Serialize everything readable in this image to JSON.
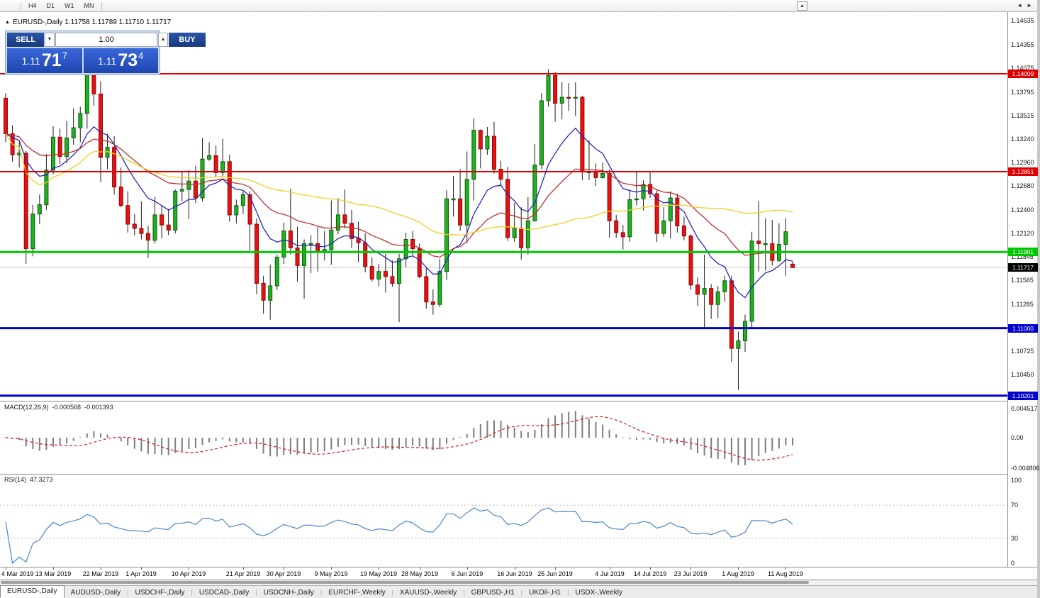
{
  "toolbar": {
    "timeframes": [
      "H4",
      "D1",
      "W1",
      "MN"
    ],
    "up_arrow": "▲"
  },
  "chart": {
    "collapse_icon": "▲",
    "symbol": "EURUSD-,Daily",
    "ohlc_text": "1.11758 1.11789 1.11710 1.11717"
  },
  "trade_panel": {
    "sell_label": "SELL",
    "buy_label": "BUY",
    "volume": "1.00",
    "spinner_up": "▲",
    "spinner_down": "▼",
    "sell_price_prefix": "1.11",
    "sell_price_big": "71",
    "sell_price_sup": "7",
    "buy_price_prefix": "1.11",
    "buy_price_big": "73",
    "buy_price_sup": "4"
  },
  "tabs": {
    "items": [
      "EURUSD-,Daily",
      "AUDUSD-,Daily",
      "USDCHF-,Daily",
      "USDCAD-,Daily",
      "USDCNH-,Daily",
      "EURCHF-,Weekly",
      "XAUUSD-,Weekly",
      "GBPUSD-,H1",
      "UKOil-,H1",
      "USDX-,Weekly"
    ],
    "active_index": 0,
    "nav_left": "◄",
    "nav_right": "►"
  },
  "chart_data": {
    "type": "candlestick",
    "title": "EURUSD-,Daily",
    "ohlc": [
      [
        1.1372,
        1.1378,
        1.132,
        1.133
      ],
      [
        1.133,
        1.134,
        1.1297,
        1.1305
      ],
      [
        1.1305,
        1.132,
        1.129,
        1.1307
      ],
      [
        1.1307,
        1.131,
        1.1176,
        1.1194
      ],
      [
        1.1194,
        1.1246,
        1.1185,
        1.1235
      ],
      [
        1.1235,
        1.1258,
        1.1223,
        1.1246
      ],
      [
        1.1246,
        1.1306,
        1.124,
        1.1287
      ],
      [
        1.1287,
        1.1339,
        1.1282,
        1.1326
      ],
      [
        1.1326,
        1.1336,
        1.1294,
        1.1303
      ],
      [
        1.1303,
        1.1345,
        1.1295,
        1.1325
      ],
      [
        1.1325,
        1.136,
        1.1317,
        1.1337
      ],
      [
        1.1337,
        1.1362,
        1.132,
        1.1354
      ],
      [
        1.1354,
        1.141,
        1.1336,
        1.14
      ],
      [
        1.14,
        1.1412,
        1.1363,
        1.1377
      ],
      [
        1.1377,
        1.1392,
        1.1273,
        1.1302
      ],
      [
        1.1302,
        1.133,
        1.1288,
        1.1314
      ],
      [
        1.1314,
        1.1327,
        1.1258,
        1.1267
      ],
      [
        1.1267,
        1.129,
        1.1243,
        1.1245
      ],
      [
        1.1245,
        1.1262,
        1.1213,
        1.1223
      ],
      [
        1.1223,
        1.1235,
        1.121,
        1.1218
      ],
      [
        1.1218,
        1.125,
        1.1205,
        1.1212
      ],
      [
        1.1212,
        1.1221,
        1.1183,
        1.1204
      ],
      [
        1.1204,
        1.1255,
        1.12,
        1.1234
      ],
      [
        1.1234,
        1.1245,
        1.1206,
        1.1222
      ],
      [
        1.1222,
        1.1241,
        1.121,
        1.1216
      ],
      [
        1.1216,
        1.1264,
        1.1212,
        1.1262
      ],
      [
        1.1262,
        1.1285,
        1.125,
        1.1264
      ],
      [
        1.1264,
        1.1287,
        1.1229,
        1.1274
      ],
      [
        1.1274,
        1.1292,
        1.1248,
        1.1254
      ],
      [
        1.1254,
        1.1325,
        1.125,
        1.13
      ],
      [
        1.13,
        1.132,
        1.1298,
        1.1304
      ],
      [
        1.1304,
        1.1316,
        1.1279,
        1.1284
      ],
      [
        1.1284,
        1.1324,
        1.128,
        1.1297
      ],
      [
        1.1297,
        1.1305,
        1.1226,
        1.1234
      ],
      [
        1.1234,
        1.1252,
        1.1224,
        1.1245
      ],
      [
        1.1245,
        1.1262,
        1.1235,
        1.1258
      ],
      [
        1.1258,
        1.1262,
        1.1192,
        1.1223
      ],
      [
        1.1223,
        1.123,
        1.114,
        1.1153
      ],
      [
        1.1153,
        1.1162,
        1.1117,
        1.1133
      ],
      [
        1.1133,
        1.1175,
        1.111,
        1.115
      ],
      [
        1.115,
        1.1187,
        1.1145,
        1.1184
      ],
      [
        1.1184,
        1.1225,
        1.1176,
        1.1215
      ],
      [
        1.1215,
        1.1265,
        1.1187,
        1.1195
      ],
      [
        1.1195,
        1.122,
        1.1155,
        1.1174
      ],
      [
        1.1174,
        1.1205,
        1.1135,
        1.12
      ],
      [
        1.12,
        1.121,
        1.1165,
        1.12
      ],
      [
        1.12,
        1.122,
        1.1167,
        1.1191
      ],
      [
        1.1191,
        1.1215,
        1.118,
        1.1193
      ],
      [
        1.1193,
        1.1251,
        1.1175,
        1.1216
      ],
      [
        1.1216,
        1.1254,
        1.1211,
        1.1234
      ],
      [
        1.1234,
        1.1264,
        1.1218,
        1.1224
      ],
      [
        1.1224,
        1.124,
        1.1195,
        1.1206
      ],
      [
        1.1206,
        1.1226,
        1.1178,
        1.1201
      ],
      [
        1.1201,
        1.1212,
        1.1166,
        1.1173
      ],
      [
        1.1173,
        1.1184,
        1.1155,
        1.1158
      ],
      [
        1.1158,
        1.1176,
        1.115,
        1.1167
      ],
      [
        1.1167,
        1.1188,
        1.1142,
        1.1161
      ],
      [
        1.1161,
        1.118,
        1.1149,
        1.1153
      ],
      [
        1.1153,
        1.1188,
        1.1107,
        1.1182
      ],
      [
        1.1182,
        1.1213,
        1.1172,
        1.1205
      ],
      [
        1.1205,
        1.1215,
        1.1186,
        1.1194
      ],
      [
        1.1194,
        1.12,
        1.1159,
        1.1161
      ],
      [
        1.1161,
        1.1172,
        1.1123,
        1.1131
      ],
      [
        1.1131,
        1.1146,
        1.1116,
        1.1128
      ],
      [
        1.1128,
        1.1182,
        1.1125,
        1.1167
      ],
      [
        1.1167,
        1.1263,
        1.1157,
        1.1253
      ],
      [
        1.1253,
        1.128,
        1.1232,
        1.1253
      ],
      [
        1.1253,
        1.1288,
        1.1215,
        1.1222
      ],
      [
        1.1222,
        1.1309,
        1.1201,
        1.1276
      ],
      [
        1.1276,
        1.1348,
        1.1251,
        1.1334
      ],
      [
        1.1334,
        1.1335,
        1.1289,
        1.1312
      ],
      [
        1.1312,
        1.1338,
        1.1305,
        1.1327
      ],
      [
        1.1327,
        1.1344,
        1.1283,
        1.1288
      ],
      [
        1.1288,
        1.1298,
        1.1268,
        1.1276
      ],
      [
        1.1276,
        1.1291,
        1.1203,
        1.1207
      ],
      [
        1.1207,
        1.1248,
        1.1202,
        1.1218
      ],
      [
        1.1218,
        1.1243,
        1.1181,
        1.1195
      ],
      [
        1.1195,
        1.1255,
        1.1187,
        1.1227
      ],
      [
        1.1227,
        1.1318,
        1.1226,
        1.1293
      ],
      [
        1.1293,
        1.1378,
        1.1288,
        1.1369
      ],
      [
        1.1369,
        1.1406,
        1.1362,
        1.1399
      ],
      [
        1.1399,
        1.1403,
        1.1344,
        1.1366
      ],
      [
        1.1366,
        1.1391,
        1.1347,
        1.1373
      ],
      [
        1.1373,
        1.139,
        1.1357,
        1.1372
      ],
      [
        1.1372,
        1.1391,
        1.1351,
        1.1373
      ],
      [
        1.1373,
        1.1375,
        1.1275,
        1.1285
      ],
      [
        1.1285,
        1.1322,
        1.1275,
        1.1285
      ],
      [
        1.1285,
        1.1295,
        1.1268,
        1.1278
      ],
      [
        1.1278,
        1.1296,
        1.1277,
        1.1283
      ],
      [
        1.1283,
        1.1288,
        1.1207,
        1.1227
      ],
      [
        1.1227,
        1.1234,
        1.1207,
        1.1213
      ],
      [
        1.1213,
        1.1222,
        1.1193,
        1.1208
      ],
      [
        1.1208,
        1.1264,
        1.1202,
        1.1252
      ],
      [
        1.1252,
        1.1286,
        1.1245,
        1.1253
      ],
      [
        1.1253,
        1.1275,
        1.1239,
        1.127
      ],
      [
        1.127,
        1.1284,
        1.1254,
        1.1259
      ],
      [
        1.1259,
        1.1263,
        1.1202,
        1.1212
      ],
      [
        1.1212,
        1.1243,
        1.1208,
        1.1227
      ],
      [
        1.1227,
        1.1262,
        1.1206,
        1.1254
      ],
      [
        1.1254,
        1.1259,
        1.1213,
        1.1221
      ],
      [
        1.1221,
        1.1232,
        1.1204,
        1.1209
      ],
      [
        1.1209,
        1.1211,
        1.1145,
        1.1151
      ],
      [
        1.1151,
        1.116,
        1.1126,
        1.114
      ],
      [
        1.114,
        1.1187,
        1.1101,
        1.1147
      ],
      [
        1.1147,
        1.1152,
        1.1111,
        1.1128
      ],
      [
        1.1128,
        1.115,
        1.1112,
        1.1143
      ],
      [
        1.1143,
        1.1162,
        1.1131,
        1.1156
      ],
      [
        1.1156,
        1.1162,
        1.106,
        1.1076
      ],
      [
        1.1076,
        1.1096,
        1.1027,
        1.1085
      ],
      [
        1.1085,
        1.1116,
        1.1072,
        1.1108
      ],
      [
        1.1108,
        1.1214,
        1.1101,
        1.1203
      ],
      [
        1.1203,
        1.125,
        1.1167,
        1.12
      ],
      [
        1.12,
        1.123,
        1.1168,
        1.12
      ],
      [
        1.12,
        1.1228,
        1.1174,
        1.118
      ],
      [
        1.118,
        1.1224,
        1.1178,
        1.1199
      ],
      [
        1.1199,
        1.123,
        1.1162,
        1.1214
      ],
      [
        1.11758,
        1.11789,
        1.1171,
        1.11717
      ]
    ],
    "price_ticks": [
      1.14635,
      1.14355,
      1.14075,
      1.13795,
      1.13515,
      1.1324,
      1.1296,
      1.1268,
      1.124,
      1.1212,
      1.11845,
      1.11565,
      1.11285,
      1.10725,
      1.1045
    ],
    "hlines": [
      {
        "price": 1.14009,
        "color": "#dd0000",
        "width": 2
      },
      {
        "price": 1.12851,
        "color": "#dd0000",
        "width": 2
      },
      {
        "price": 1.11901,
        "color": "#00c800",
        "width": 3
      },
      {
        "price": 1.11,
        "color": "#0000cc",
        "width": 3
      },
      {
        "price": 1.10201,
        "color": "#0000cc",
        "width": 3
      }
    ],
    "bid": {
      "price": 1.11717,
      "label_bg": "#000000"
    },
    "date_ticks": [
      {
        "label": "4 Mar 2019",
        "i": 0
      },
      {
        "label": "13 Mar 2019",
        "i": 7
      },
      {
        "label": "22 Mar 2019",
        "i": 14
      },
      {
        "label": "1 Apr 2019",
        "i": 20
      },
      {
        "label": "10 Apr 2019",
        "i": 27
      },
      {
        "label": "21 Apr 2019",
        "i": 35
      },
      {
        "label": "30 Apr 2019",
        "i": 41
      },
      {
        "label": "9 May 2019",
        "i": 48
      },
      {
        "label": "19 May 2019",
        "i": 55
      },
      {
        "label": "28 May 2019",
        "i": 61
      },
      {
        "label": "6 Jun 2019",
        "i": 68
      },
      {
        "label": "16 Jun 2019",
        "i": 75
      },
      {
        "label": "25 Jun 2019",
        "i": 81
      },
      {
        "label": "4 Jul 2019",
        "i": 89
      },
      {
        "label": "14 Jul 2019",
        "i": 95
      },
      {
        "label": "23 Jul 2019",
        "i": 101
      },
      {
        "label": "1 Aug 2019",
        "i": 108
      },
      {
        "label": "11 Aug 2019",
        "i": 115
      }
    ],
    "colors": {
      "up": "#21b121",
      "up_edge": "#0b5a0b",
      "down": "#e81010",
      "down_edge": "#8f0606",
      "wick": "#1a1a1a",
      "ma_fast": "#2626b8",
      "ma_mid": "#c03030",
      "ma_slow": "#f0cf20",
      "macd_hist": "#7d7d7d",
      "macd_signal": "#d01818",
      "rsi_line": "#4a86c8",
      "level_dots": "#b8b8b8"
    },
    "moving_averages": [
      {
        "period": 10,
        "method": "ema",
        "color_key": "ma_fast"
      },
      {
        "period": 25,
        "method": "ema",
        "color_key": "ma_mid"
      },
      {
        "period": 50,
        "method": "sma",
        "color_key": "ma_slow"
      }
    ],
    "indicators": {
      "macd": {
        "name": "MACD(12,26,9)",
        "value_main": "-0.000568",
        "value_signal": "-0.001393",
        "fast": 12,
        "slow": 26,
        "signal": 9,
        "axis_top": "0.004517",
        "axis_zero": "0.00",
        "axis_bottom": "-0.004806"
      },
      "rsi": {
        "name": "RSI(14)",
        "value": "47.3273",
        "period": 14,
        "axis": [
          "100",
          "70",
          "30",
          "0"
        ],
        "levels": [
          70,
          30
        ]
      }
    }
  }
}
